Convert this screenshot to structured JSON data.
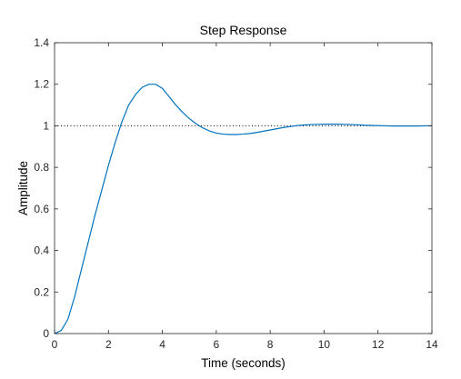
{
  "chart_data": {
    "type": "line",
    "title": "Step Response",
    "xlabel": "Time (seconds)",
    "ylabel": "Amplitude",
    "xlim": [
      0,
      14
    ],
    "ylim": [
      0,
      1.4
    ],
    "x_ticks": [
      "0",
      "2",
      "4",
      "6",
      "8",
      "10",
      "12",
      "14"
    ],
    "y_ticks": [
      "0",
      "0.2",
      "0.4",
      "0.6",
      "0.8",
      "1",
      "1.2",
      "1.4"
    ],
    "grid": false,
    "reference_line": {
      "y": 1,
      "style": "dotted",
      "color": "#000000"
    },
    "series": [
      {
        "color": "#0072BD",
        "x": [
          0,
          0.25,
          0.5,
          0.75,
          1.0,
          1.25,
          1.5,
          1.75,
          2.0,
          2.25,
          2.5,
          2.75,
          3.0,
          3.25,
          3.5,
          3.75,
          4.0,
          4.25,
          4.5,
          4.75,
          5.0,
          5.25,
          5.5,
          5.75,
          6.0,
          6.25,
          6.5,
          6.75,
          7.0,
          7.25,
          7.5,
          7.75,
          8.0,
          8.25,
          8.5,
          8.75,
          9.0,
          9.25,
          9.5,
          9.75,
          10.0,
          10.25,
          10.5,
          10.75,
          11.0,
          11.25,
          11.5,
          11.75,
          12.0,
          12.25,
          12.5,
          12.75,
          13.0,
          13.25,
          13.5,
          13.75,
          14.0
        ],
        "y": [
          0,
          0.015,
          0.07,
          0.18,
          0.31,
          0.44,
          0.57,
          0.69,
          0.81,
          0.92,
          1.02,
          1.1,
          1.15,
          1.185,
          1.2,
          1.2,
          1.18,
          1.14,
          1.1,
          1.065,
          1.035,
          1.01,
          0.99,
          0.975,
          0.965,
          0.96,
          0.958,
          0.958,
          0.96,
          0.963,
          0.968,
          0.974,
          0.98,
          0.986,
          0.992,
          0.997,
          1.001,
          1.004,
          1.006,
          1.007,
          1.008,
          1.008,
          1.008,
          1.007,
          1.006,
          1.005,
          1.003,
          1.002,
          1.001,
          1.0,
          0.999,
          0.999,
          0.999,
          0.999,
          0.999,
          1.0,
          1.0
        ]
      }
    ]
  }
}
